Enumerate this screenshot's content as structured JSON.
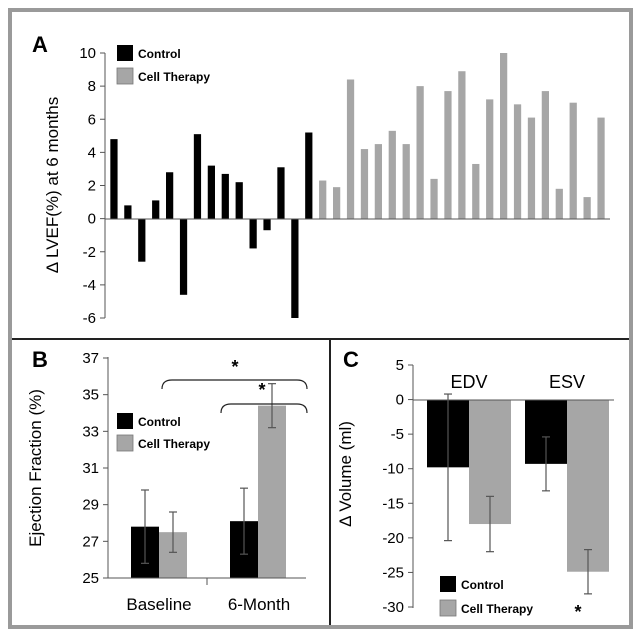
{
  "colors": {
    "control": "#000000",
    "cell": "#a6a6a6",
    "axis": "#222222",
    "border": "#9a9a9a"
  },
  "panel_labels": {
    "a": "A",
    "b": "B",
    "c": "C"
  },
  "chart_data": [
    {
      "id": "A",
      "type": "bar",
      "ylabel": "Δ LVEF(%) at 6 months",
      "ylim": [
        -6,
        10
      ],
      "yticks": [
        10,
        8,
        6,
        4,
        2,
        0,
        -2,
        -4,
        -6
      ],
      "legend": [
        "Control",
        "Cell Therapy"
      ],
      "series": [
        {
          "name": "Control",
          "values": [
            4.8,
            0.8,
            -2.6,
            1.1,
            2.8,
            -4.6,
            5.1,
            3.2,
            2.7,
            2.2,
            -1.8,
            -0.7,
            3.1,
            -6.0,
            5.2
          ]
        },
        {
          "name": "Cell Therapy",
          "values": [
            2.3,
            1.9,
            8.4,
            4.2,
            4.5,
            5.3,
            4.5,
            8.0,
            2.4,
            7.7,
            8.9,
            3.3,
            7.2,
            10.0,
            6.9,
            6.1,
            7.7,
            1.8,
            7.0,
            1.3,
            6.1
          ]
        }
      ]
    },
    {
      "id": "B",
      "type": "bar",
      "ylabel": "Ejection Fraction (%)",
      "ylim": [
        25,
        37
      ],
      "yticks": [
        37,
        35,
        33,
        31,
        29,
        27,
        25
      ],
      "categories": [
        "Baseline",
        "6-Month"
      ],
      "legend": [
        "Control",
        "Cell Therapy"
      ],
      "series": [
        {
          "name": "Control",
          "values": [
            27.8,
            28.1
          ],
          "errors": [
            2.0,
            1.8
          ]
        },
        {
          "name": "Cell Therapy",
          "values": [
            27.5,
            34.4
          ],
          "errors": [
            1.1,
            1.2
          ]
        }
      ],
      "significance": [
        "*",
        "*"
      ]
    },
    {
      "id": "C",
      "type": "bar",
      "ylabel": "Δ Volume (ml)",
      "ylim": [
        -30,
        5
      ],
      "yticks": [
        5,
        0,
        -5,
        -10,
        -15,
        -20,
        -25,
        -30
      ],
      "categories": [
        "EDV",
        "ESV"
      ],
      "legend": [
        "Control",
        "Cell Therapy"
      ],
      "series": [
        {
          "name": "Control",
          "values": [
            -9.8,
            -9.3
          ],
          "errors": [
            10.6,
            3.9
          ]
        },
        {
          "name": "Cell Therapy",
          "values": [
            -18.0,
            -24.9
          ],
          "errors": [
            4.0,
            3.2
          ]
        }
      ],
      "significance": [
        "*"
      ]
    }
  ]
}
